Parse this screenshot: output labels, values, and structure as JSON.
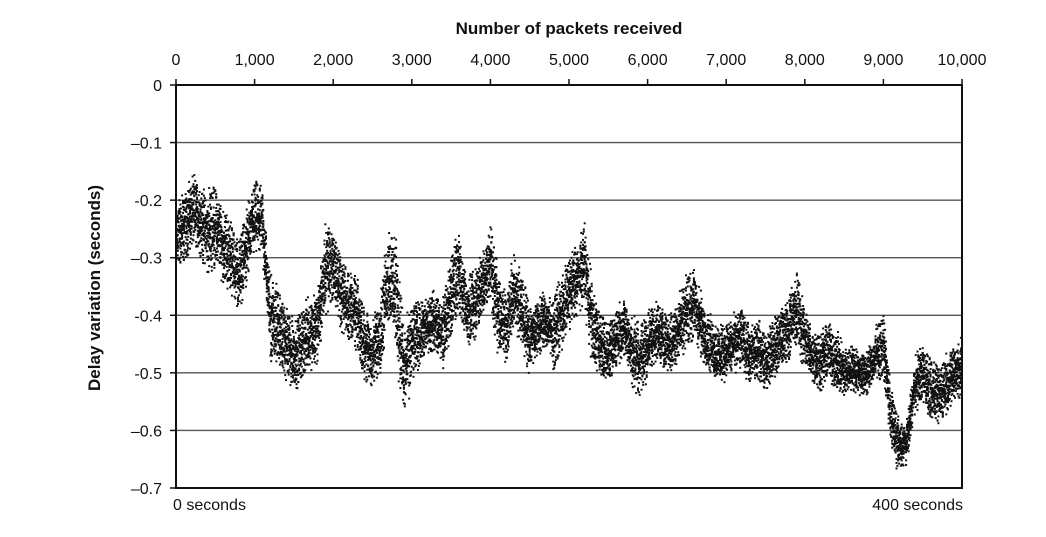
{
  "chart_data": {
    "type": "scatter",
    "title": "",
    "x_top_label": "Number of packets received",
    "ylabel": "Delay variation (seconds)",
    "x_ticks": [
      "0",
      "1,000",
      "2,000",
      "3,000",
      "4,000",
      "5,000",
      "6,000",
      "7,000",
      "8,000",
      "9,000",
      "10,000"
    ],
    "x_tick_values": [
      0,
      1000,
      2000,
      3000,
      4000,
      5000,
      6000,
      7000,
      8000,
      9000,
      10000
    ],
    "y_ticks": [
      "0",
      "–0.1",
      "-0.2",
      "–0.3",
      "-0.4",
      "-0.5",
      "–0.6",
      "–0.7"
    ],
    "y_tick_values": [
      0,
      -0.1,
      -0.2,
      -0.3,
      -0.4,
      -0.5,
      -0.6,
      -0.7
    ],
    "xlim": [
      0,
      10000
    ],
    "ylim": [
      -0.7,
      0
    ],
    "grid": "horizontal",
    "bottom_left_note": "0 seconds",
    "bottom_right_note": "400 seconds",
    "point_color": "#111111",
    "series": [
      {
        "x": [
          0,
          100,
          200,
          300,
          400,
          500,
          600,
          700,
          800,
          900,
          1000,
          1100,
          1200,
          1300,
          1400,
          1500,
          1600,
          1700,
          1800,
          1900,
          2000,
          2100,
          2200,
          2300,
          2400,
          2500,
          2600,
          2700,
          2800,
          2900,
          3000,
          3100,
          3200,
          3300,
          3400,
          3500,
          3600,
          3700,
          3800,
          3900,
          4000,
          4100,
          4200,
          4300,
          4400,
          4500,
          4600,
          4700,
          4800,
          4900,
          5000,
          5100,
          5200,
          5300,
          5400,
          5500,
          5600,
          5700,
          5800,
          5900,
          6000,
          6100,
          6200,
          6300,
          6400,
          6500,
          6600,
          6700,
          6800,
          6900,
          7000,
          7100,
          7200,
          7300,
          7400,
          7500,
          7600,
          7700,
          7800,
          7900,
          8000,
          8100,
          8200,
          8300,
          8400,
          8500,
          8600,
          8700,
          8800,
          8900,
          9000,
          9100,
          9200,
          9300,
          9400,
          9500,
          9600,
          9700,
          9800,
          9900,
          10000
        ],
        "y": [
          -0.26,
          -0.25,
          -0.22,
          -0.23,
          -0.26,
          -0.24,
          -0.28,
          -0.3,
          -0.33,
          -0.28,
          -0.23,
          -0.24,
          -0.4,
          -0.42,
          -0.45,
          -0.47,
          -0.45,
          -0.43,
          -0.42,
          -0.32,
          -0.31,
          -0.36,
          -0.38,
          -0.4,
          -0.45,
          -0.47,
          -0.43,
          -0.33,
          -0.36,
          -0.5,
          -0.45,
          -0.43,
          -0.42,
          -0.41,
          -0.43,
          -0.37,
          -0.32,
          -0.4,
          -0.38,
          -0.35,
          -0.3,
          -0.4,
          -0.42,
          -0.36,
          -0.39,
          -0.44,
          -0.42,
          -0.41,
          -0.43,
          -0.4,
          -0.36,
          -0.34,
          -0.31,
          -0.42,
          -0.45,
          -0.47,
          -0.44,
          -0.42,
          -0.46,
          -0.48,
          -0.45,
          -0.43,
          -0.44,
          -0.45,
          -0.42,
          -0.39,
          -0.38,
          -0.43,
          -0.45,
          -0.47,
          -0.46,
          -0.45,
          -0.44,
          -0.47,
          -0.46,
          -0.48,
          -0.46,
          -0.44,
          -0.42,
          -0.39,
          -0.44,
          -0.47,
          -0.48,
          -0.46,
          -0.48,
          -0.5,
          -0.49,
          -0.5,
          -0.5,
          -0.47,
          -0.45,
          -0.58,
          -0.63,
          -0.62,
          -0.52,
          -0.5,
          -0.53,
          -0.54,
          -0.52,
          -0.5,
          -0.49
        ],
        "spread": [
          0.05,
          0.05,
          0.05,
          0.05,
          0.06,
          0.05,
          0.05,
          0.05,
          0.05,
          0.05,
          0.05,
          0.05,
          0.06,
          0.05,
          0.05,
          0.05,
          0.05,
          0.05,
          0.05,
          0.06,
          0.05,
          0.05,
          0.05,
          0.05,
          0.05,
          0.05,
          0.06,
          0.07,
          0.08,
          0.06,
          0.05,
          0.04,
          0.04,
          0.04,
          0.05,
          0.06,
          0.05,
          0.05,
          0.05,
          0.05,
          0.06,
          0.05,
          0.05,
          0.05,
          0.05,
          0.04,
          0.04,
          0.04,
          0.05,
          0.05,
          0.05,
          0.05,
          0.06,
          0.05,
          0.04,
          0.04,
          0.04,
          0.04,
          0.05,
          0.05,
          0.04,
          0.04,
          0.04,
          0.04,
          0.05,
          0.05,
          0.05,
          0.04,
          0.04,
          0.04,
          0.04,
          0.04,
          0.04,
          0.04,
          0.04,
          0.04,
          0.04,
          0.04,
          0.05,
          0.05,
          0.04,
          0.04,
          0.04,
          0.04,
          0.04,
          0.03,
          0.03,
          0.03,
          0.03,
          0.04,
          0.04,
          0.04,
          0.03,
          0.03,
          0.04,
          0.04,
          0.04,
          0.04,
          0.04,
          0.04,
          0.04
        ]
      }
    ]
  }
}
